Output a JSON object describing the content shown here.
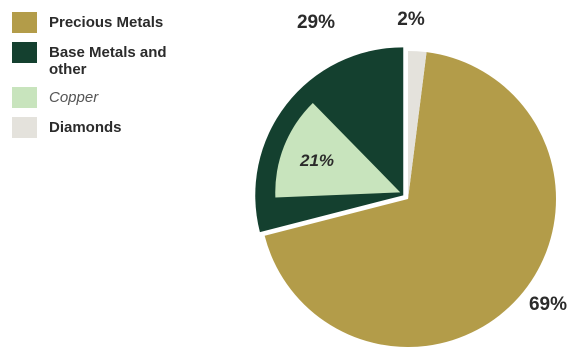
{
  "chart_data": {
    "type": "pie",
    "legend_placement": "top-left",
    "slices": [
      {
        "name": "Precious Metals",
        "value": 69,
        "label": "69%",
        "color": "#b39c49",
        "label_style": "bold"
      },
      {
        "name": "Base Metals and other",
        "value": 29,
        "label": "29%",
        "color": "#14402f",
        "label_style": "bold",
        "exploded": true
      },
      {
        "name": "Copper",
        "value": 21,
        "label": "21%",
        "color": "#c8e4bd",
        "label_style": "italic",
        "sub_slice_of": "Base Metals and other"
      },
      {
        "name": "Diamonds",
        "value": 2,
        "label": "2%",
        "color": "#e4e2dc",
        "label_style": "bold"
      }
    ]
  }
}
